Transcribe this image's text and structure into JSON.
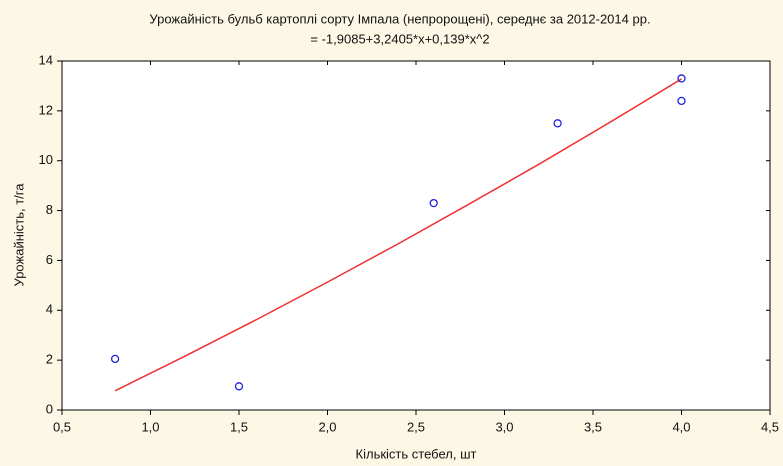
{
  "chart_data": {
    "type": "scatter",
    "title": "Урожайність бульб картоплі сорту Імпала (непророщені), середнє за 2012-2014 рр.",
    "subtitle": "= -1,9085+3,2405*x+0,139*x^2",
    "x_label": "Кількість стебел, шт",
    "y_label": "Урожайність, т/га",
    "x": [
      0.8,
      1.5,
      2.6,
      3.3,
      4.0,
      4.0
    ],
    "values": [
      2.05,
      0.95,
      8.3,
      11.5,
      13.3,
      12.4
    ],
    "color": "#2020e0",
    "fit": {
      "color": "#f03030",
      "x": [
        0.8,
        1.2,
        1.6,
        2.0,
        2.4,
        2.8,
        3.2,
        3.6,
        4.0
      ],
      "values": [
        0.77,
        2.18,
        3.63,
        5.13,
        6.67,
        8.26,
        9.88,
        11.56,
        13.28
      ]
    },
    "xlim": [
      0.5,
      4.5
    ],
    "xticks": [
      {
        "value": 0.5,
        "label": "0,5"
      },
      {
        "value": 1.0,
        "label": "1,0"
      },
      {
        "value": 1.5,
        "label": "1,5"
      },
      {
        "value": 2.0,
        "label": "2,0"
      },
      {
        "value": 2.5,
        "label": "2,5"
      },
      {
        "value": 3.0,
        "label": "3,0"
      },
      {
        "value": 3.5,
        "label": "3,5"
      },
      {
        "value": 4.0,
        "label": "4,0"
      },
      {
        "value": 4.5,
        "label": "4,5"
      }
    ],
    "ylim": [
      0,
      14
    ],
    "yticks": [
      0,
      2,
      4,
      6,
      8,
      10,
      12,
      14
    ]
  }
}
